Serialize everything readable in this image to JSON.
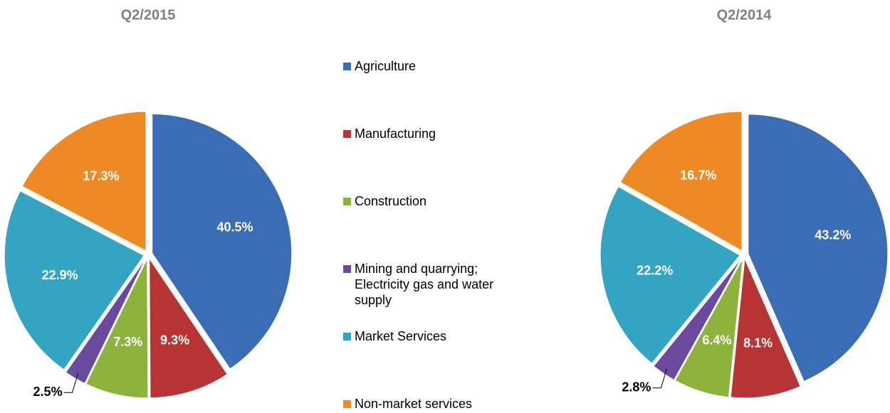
{
  "chart_data": [
    {
      "type": "pie",
      "title": "Q2/2015",
      "categories": [
        "Agriculture",
        "Manufacturing",
        "Construction",
        "Mining and quarrying; Electricity gas and water supply",
        "Market Services",
        "Non-market services"
      ],
      "values": [
        40.5,
        9.3,
        7.3,
        2.5,
        22.9,
        17.3
      ],
      "value_labels": [
        "40.5%",
        "9.3%",
        "7.3%",
        "2.5%",
        "22.9%",
        "17.3%"
      ],
      "colors": [
        "#3a6db5",
        "#b83434",
        "#8db33c",
        "#6a4a9c",
        "#33a4c2",
        "#ee8a25"
      ]
    },
    {
      "type": "pie",
      "title": "Q2/2014",
      "categories": [
        "Agriculture",
        "Manufacturing",
        "Construction",
        "Mining and quarrying; Electricity gas and water supply",
        "Market Services",
        "Non-market services"
      ],
      "values": [
        43.2,
        8.1,
        6.4,
        2.8,
        22.2,
        16.7
      ],
      "value_labels": [
        "43.2%",
        "8.1%",
        "6.4%",
        "2.8%",
        "22.2%",
        "16.7%"
      ],
      "colors": [
        "#3a6db5",
        "#b83434",
        "#8db33c",
        "#6a4a9c",
        "#33a4c2",
        "#ee8a25"
      ]
    }
  ]
}
